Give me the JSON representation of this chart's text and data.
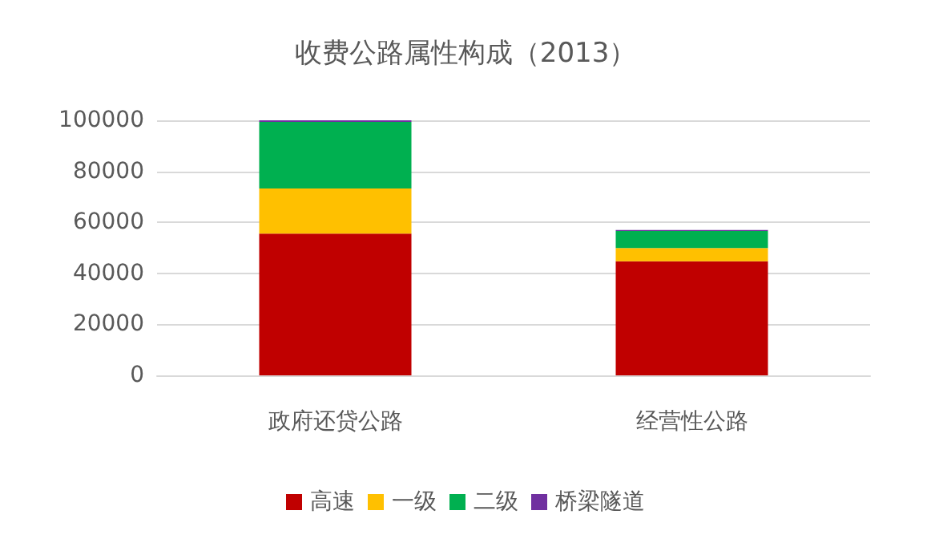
{
  "chart_data": {
    "type": "bar",
    "title": "收费公路属性构成（2013）",
    "stacked": true,
    "categories": [
      "政府还贷公路",
      "经营性公路"
    ],
    "series": [
      {
        "name": "高速",
        "color": "#c00000",
        "values": [
          55600,
          44700
        ]
      },
      {
        "name": "一级",
        "color": "#ffc000",
        "values": [
          17700,
          5200
        ]
      },
      {
        "name": "二级",
        "color": "#00b050",
        "values": [
          26100,
          6700
        ]
      },
      {
        "name": "桥梁隧道",
        "color": "#7030a0",
        "values": [
          600,
          400
        ]
      }
    ],
    "ylim": [
      0,
      100000
    ],
    "yticks": [
      0,
      20000,
      40000,
      60000,
      80000,
      100000
    ],
    "grid": "y",
    "legend": "bottom"
  }
}
